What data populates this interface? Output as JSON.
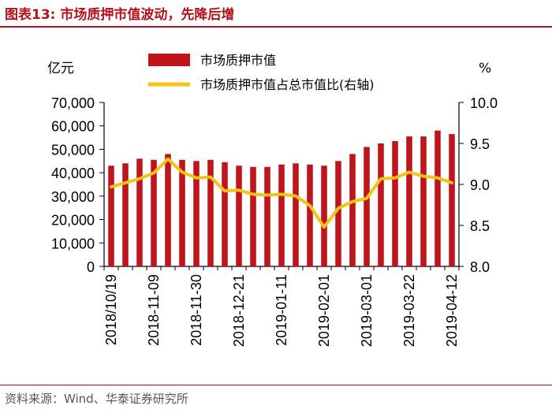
{
  "figure": {
    "title": "图表13:   市场质押市值波动，先降后增",
    "source": "资料来源：Wind、华泰证券研究所"
  },
  "colors": {
    "bar": "#c0141c",
    "line": "#f5c218",
    "accent": "#b4121b"
  },
  "chart_data": {
    "type": "bar+line",
    "y_left_label": "亿元",
    "y_right_label": "%",
    "y_left_ticks": [
      "70,000",
      "60,000",
      "50,000",
      "40,000",
      "30,000",
      "20,000",
      "10,000",
      "0"
    ],
    "y_right_ticks": [
      "10.0",
      "9.5",
      "9.0",
      "8.5",
      "8.0"
    ],
    "y_left_range": [
      0,
      70000
    ],
    "y_right_range": [
      8.0,
      10.0
    ],
    "x_tick_labels": [
      "2018/10/19",
      "2018-11-09",
      "2018-11-30",
      "2018-12-21",
      "2019-01-11",
      "2019-02-01",
      "2019-03-01",
      "2019-03-22",
      "2019-04-12"
    ],
    "series": [
      {
        "name": "市场质押市值",
        "type": "bar",
        "axis": "left",
        "values": [
          43000,
          44000,
          46000,
          45500,
          48000,
          45500,
          45000,
          45500,
          44500,
          43000,
          42500,
          42500,
          43500,
          44000,
          43500,
          43000,
          45000,
          48000,
          51000,
          52500,
          53500,
          55500,
          55500,
          58000,
          56500
        ]
      },
      {
        "name": "市场质押市值占总市值比(右轴)",
        "type": "line",
        "axis": "right",
        "values": [
          8.97,
          9.02,
          9.07,
          9.14,
          9.31,
          9.15,
          9.08,
          9.09,
          8.92,
          8.93,
          8.88,
          8.87,
          8.88,
          8.86,
          8.74,
          8.48,
          8.71,
          8.79,
          8.83,
          9.07,
          9.08,
          9.15,
          9.1,
          9.08,
          9.02
        ]
      }
    ]
  }
}
